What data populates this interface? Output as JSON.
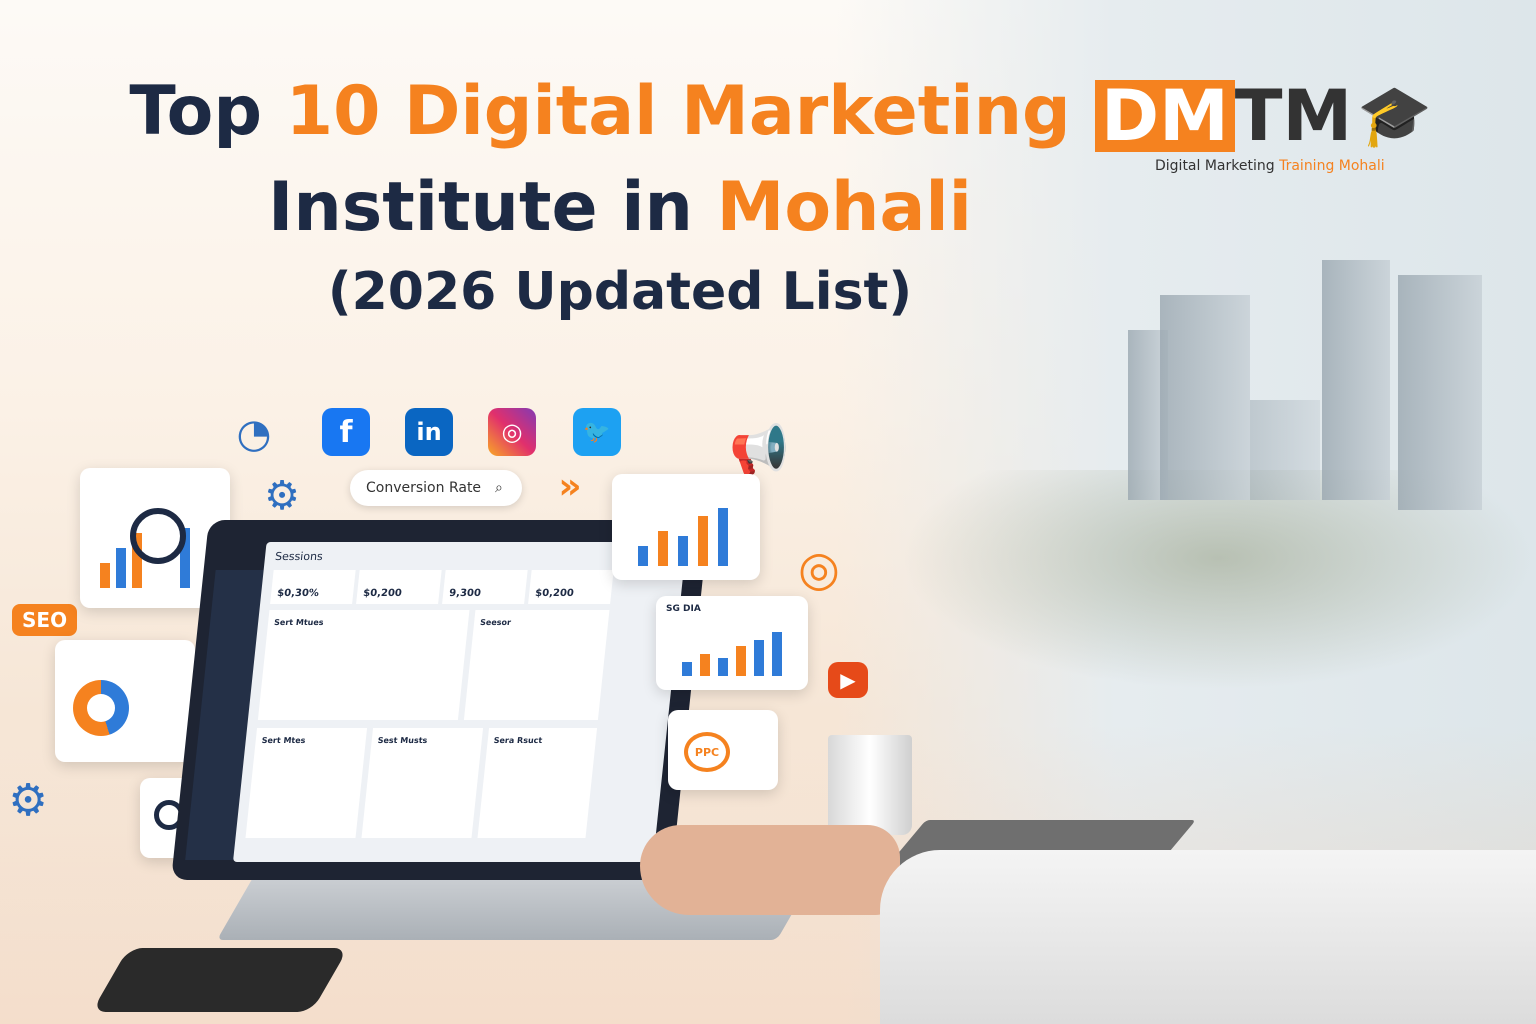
{
  "headline": {
    "line1_dark": "Top",
    "line1_accent": "10 Digital Marketing",
    "line2_dark": "Institute in",
    "line2_accent": "Mohali",
    "line3": "(2026 Updated List)"
  },
  "logo": {
    "mark_accent": "DM",
    "mark_dark": "TM",
    "caption_dark": "Digital Marketing",
    "caption_accent": "Training Mohali"
  },
  "search_pill": {
    "label": "Conversion Rate",
    "icon": "search-icon"
  },
  "badges": {
    "seo": "SEO",
    "ppc": "PPC"
  },
  "dashboard": {
    "title": "Sessions",
    "kpis": [
      "$0,30%",
      "$0,200",
      "9,300",
      "$0,200"
    ],
    "panels": [
      "Sert Mtues",
      "Seesor",
      "Sert Mtes",
      "Sest Musts",
      "Sera Rsuct"
    ],
    "side_widget": "SG DIA"
  },
  "colors": {
    "accent": "#f5821f",
    "dark": "#1d2a44",
    "blue": "#2f7bd8"
  },
  "social_icons": [
    "facebook-icon",
    "linkedin-icon",
    "instagram-icon",
    "twitter-icon"
  ]
}
